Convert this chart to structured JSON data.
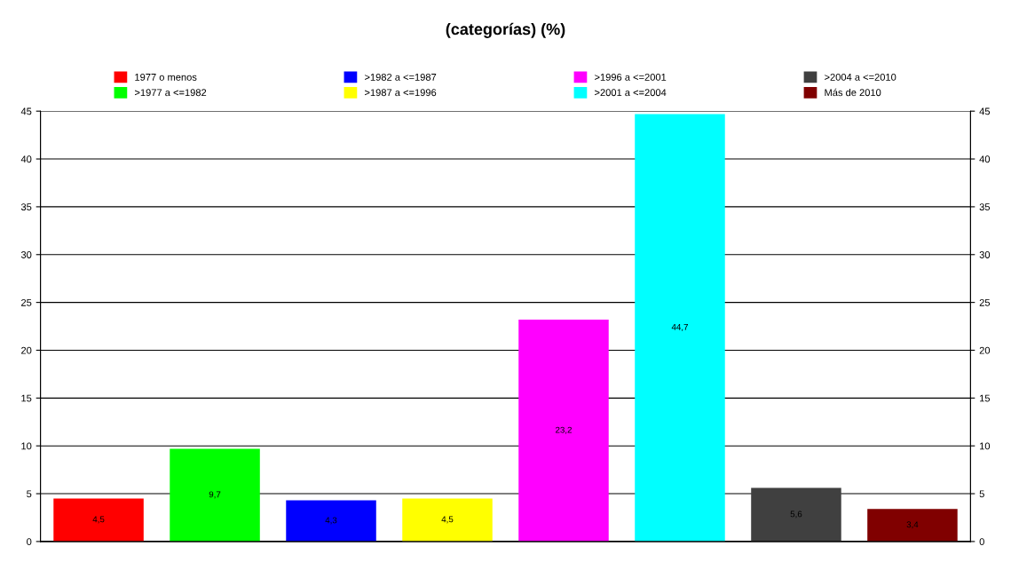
{
  "chart_data": {
    "type": "bar",
    "title": "(categorías) (%)",
    "categories": [
      null
    ],
    "series": [
      {
        "name": "1977 o menos",
        "color": "#ff0000",
        "values": [
          4.5
        ],
        "value_labels": [
          "4,5"
        ]
      },
      {
        "name": ">1977 a <=1982",
        "color": "#00ff00",
        "values": [
          9.7
        ],
        "value_labels": [
          "9,7"
        ]
      },
      {
        "name": ">1982 a <=1987",
        "color": "#0000ff",
        "values": [
          4.3
        ],
        "value_labels": [
          "4,3"
        ]
      },
      {
        "name": ">1987 a <=1996",
        "color": "#ffff00",
        "values": [
          4.5
        ],
        "value_labels": [
          "4,5"
        ]
      },
      {
        "name": ">1996 a <=2001",
        "color": "#ff00ff",
        "values": [
          23.2
        ],
        "value_labels": [
          "23,2"
        ]
      },
      {
        "name": ">2001 a <=2004",
        "color": "#00ffff",
        "values": [
          44.7
        ],
        "value_labels": [
          "44,7"
        ]
      },
      {
        "name": ">2004 a <=2010",
        "color": "#404040",
        "values": [
          5.6
        ],
        "value_labels": [
          "5,6"
        ]
      },
      {
        "name": "Más de 2010",
        "color": "#800000",
        "values": [
          3.4
        ],
        "value_labels": [
          "3,4"
        ]
      }
    ],
    "ylim": [
      0,
      45
    ],
    "yticks": [
      0,
      5,
      10,
      15,
      20,
      25,
      30,
      35,
      40,
      45
    ],
    "y2lim": [
      0,
      45
    ],
    "y2ticks": [
      0,
      5,
      10,
      15,
      20,
      25,
      30,
      35,
      40,
      45
    ],
    "grid": "y",
    "legend": "top"
  }
}
